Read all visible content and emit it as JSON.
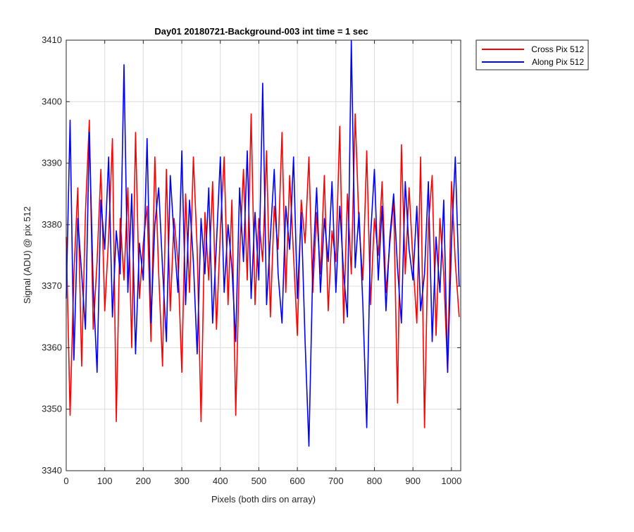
{
  "chart_data": {
    "type": "line",
    "title": "Day01 20180721-Background-003 int time = 1 sec",
    "xlabel": "Pixels (both dirs on array)",
    "ylabel": "Signal (ADU) @ pix 512",
    "xlim": [
      0,
      1024
    ],
    "ylim": [
      3340,
      3410
    ],
    "xticks": [
      0,
      100,
      200,
      300,
      400,
      500,
      600,
      700,
      800,
      900,
      1000
    ],
    "yticks": [
      3340,
      3350,
      3360,
      3370,
      3380,
      3390,
      3400,
      3410
    ],
    "grid": true,
    "legend_position": "outside-top-right",
    "series": [
      {
        "name": "Cross Pix 512",
        "color": "#ff0000",
        "x": [
          0,
          10,
          20,
          30,
          40,
          50,
          60,
          70,
          80,
          90,
          100,
          110,
          120,
          130,
          140,
          150,
          160,
          170,
          180,
          190,
          200,
          210,
          220,
          230,
          240,
          250,
          260,
          270,
          280,
          290,
          300,
          310,
          320,
          330,
          340,
          350,
          360,
          370,
          380,
          390,
          400,
          410,
          420,
          430,
          440,
          450,
          460,
          470,
          480,
          490,
          500,
          510,
          520,
          530,
          540,
          550,
          560,
          570,
          580,
          590,
          600,
          610,
          620,
          630,
          640,
          650,
          660,
          670,
          680,
          690,
          700,
          710,
          720,
          730,
          740,
          750,
          760,
          770,
          780,
          790,
          800,
          810,
          820,
          830,
          840,
          850,
          860,
          870,
          880,
          890,
          900,
          910,
          920,
          930,
          940,
          950,
          960,
          970,
          980,
          990,
          1000,
          1010,
          1020
        ],
        "y": [
          3378,
          3349,
          3372,
          3386,
          3357,
          3382,
          3397,
          3363,
          3374,
          3389,
          3366,
          3378,
          3394,
          3348,
          3381,
          3371,
          3386,
          3360,
          3395,
          3368,
          3377,
          3383,
          3361,
          3391,
          3372,
          3357,
          3389,
          3366,
          3381,
          3374,
          3356,
          3385,
          3369,
          3391,
          3376,
          3348,
          3382,
          3371,
          3387,
          3363,
          3379,
          3391,
          3367,
          3384,
          3349,
          3375,
          3389,
          3371,
          3398,
          3367,
          3381,
          3374,
          3392,
          3365,
          3383,
          3376,
          3395,
          3369,
          3388,
          3375,
          3362,
          3384,
          3377,
          3391,
          3369,
          3382,
          3372,
          3388,
          3366,
          3379,
          3374,
          3396,
          3364,
          3385,
          3372,
          3398,
          3380,
          3371,
          3392,
          3367,
          3381,
          3375,
          3387,
          3369,
          3377,
          3384,
          3351,
          3393,
          3372,
          3386,
          3374,
          3364,
          3391,
          3347,
          3380,
          3388,
          3362,
          3381,
          3372,
          3356,
          3387,
          3374,
          3365
        ]
      },
      {
        "name": "Along Pix 512",
        "color": "#0000ff",
        "x": [
          0,
          10,
          20,
          30,
          40,
          50,
          60,
          70,
          80,
          90,
          100,
          110,
          120,
          130,
          140,
          150,
          160,
          170,
          180,
          190,
          200,
          210,
          220,
          230,
          240,
          250,
          260,
          270,
          280,
          290,
          300,
          310,
          320,
          330,
          340,
          350,
          360,
          370,
          380,
          390,
          400,
          410,
          420,
          430,
          440,
          450,
          460,
          470,
          480,
          490,
          500,
          510,
          520,
          530,
          540,
          550,
          560,
          570,
          580,
          590,
          600,
          610,
          620,
          630,
          640,
          650,
          660,
          670,
          680,
          690,
          700,
          710,
          720,
          730,
          740,
          750,
          760,
          770,
          780,
          790,
          800,
          810,
          820,
          830,
          840,
          850,
          860,
          870,
          880,
          890,
          900,
          910,
          920,
          930,
          940,
          950,
          960,
          970,
          980,
          990,
          1000,
          1010,
          1020
        ],
        "y": [
          3368,
          3397,
          3358,
          3381,
          3372,
          3363,
          3395,
          3370,
          3356,
          3384,
          3376,
          3391,
          3365,
          3379,
          3372,
          3406,
          3369,
          3385,
          3359,
          3377,
          3371,
          3394,
          3364,
          3380,
          3386,
          3373,
          3361,
          3388,
          3378,
          3369,
          3392,
          3367,
          3384,
          3374,
          3359,
          3381,
          3372,
          3386,
          3364,
          3377,
          3391,
          3369,
          3380,
          3373,
          3361,
          3386,
          3374,
          3392,
          3368,
          3382,
          3371,
          3403,
          3367,
          3378,
          3389,
          3372,
          3364,
          3383,
          3376,
          3391,
          3368,
          3382,
          3361,
          3344,
          3373,
          3386,
          3369,
          3381,
          3374,
          3387,
          3369,
          3383,
          3372,
          3365,
          3410,
          3373,
          3382,
          3367,
          3347,
          3378,
          3389,
          3371,
          3383,
          3366,
          3378,
          3385,
          3373,
          3364,
          3387,
          3376,
          3371,
          3383,
          3366,
          3372,
          3387,
          3361,
          3378,
          3369,
          3384,
          3356,
          3377,
          3391,
          3370
        ]
      }
    ]
  }
}
